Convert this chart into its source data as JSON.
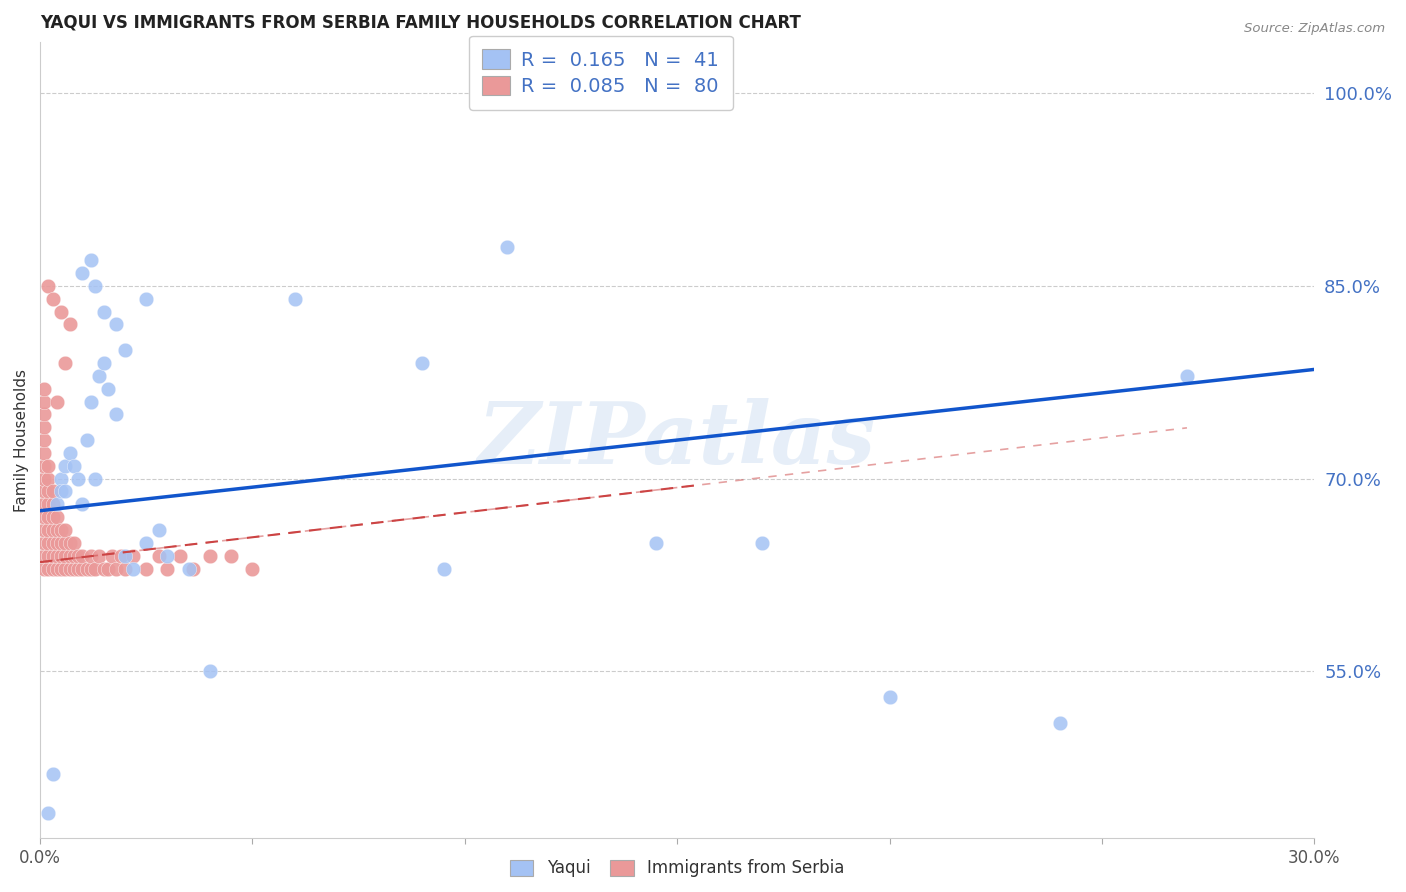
{
  "title": "YAQUI VS IMMIGRANTS FROM SERBIA FAMILY HOUSEHOLDS CORRELATION CHART",
  "source": "Source: ZipAtlas.com",
  "ylabel": "Family Households",
  "ytick_labels": [
    "100.0%",
    "85.0%",
    "70.0%",
    "55.0%"
  ],
  "ytick_values": [
    1.0,
    0.85,
    0.7,
    0.55
  ],
  "xlim": [
    0.0,
    0.3
  ],
  "ylim": [
    0.42,
    1.04
  ],
  "legend_blue_R": "0.165",
  "legend_blue_N": "41",
  "legend_pink_R": "0.085",
  "legend_pink_N": "80",
  "watermark": "ZIPatlas",
  "blue_color": "#a4c2f4",
  "pink_color": "#ea9999",
  "blue_line_color": "#1155cc",
  "pink_line_color": "#cc4444",
  "grid_color": "#cccccc",
  "background_color": "#ffffff",
  "yaqui_x": [
    0.002,
    0.003,
    0.004,
    0.005,
    0.005,
    0.006,
    0.006,
    0.007,
    0.008,
    0.009,
    0.01,
    0.011,
    0.012,
    0.013,
    0.014,
    0.015,
    0.016,
    0.018,
    0.02,
    0.022,
    0.025,
    0.028,
    0.01,
    0.012,
    0.013,
    0.015,
    0.018,
    0.02,
    0.025,
    0.03,
    0.035,
    0.04,
    0.06,
    0.09,
    0.095,
    0.11,
    0.145,
    0.17,
    0.2,
    0.24,
    0.27
  ],
  "yaqui_y": [
    0.44,
    0.47,
    0.68,
    0.7,
    0.69,
    0.71,
    0.69,
    0.72,
    0.71,
    0.7,
    0.68,
    0.73,
    0.76,
    0.7,
    0.78,
    0.79,
    0.77,
    0.75,
    0.64,
    0.63,
    0.65,
    0.66,
    0.86,
    0.87,
    0.85,
    0.83,
    0.82,
    0.8,
    0.84,
    0.64,
    0.63,
    0.55,
    0.84,
    0.79,
    0.63,
    0.88,
    0.65,
    0.65,
    0.53,
    0.51,
    0.78
  ],
  "serbia_x": [
    0.001,
    0.001,
    0.001,
    0.001,
    0.001,
    0.001,
    0.001,
    0.001,
    0.001,
    0.001,
    0.001,
    0.001,
    0.001,
    0.001,
    0.001,
    0.002,
    0.002,
    0.002,
    0.002,
    0.002,
    0.002,
    0.002,
    0.002,
    0.002,
    0.003,
    0.003,
    0.003,
    0.003,
    0.003,
    0.003,
    0.003,
    0.004,
    0.004,
    0.004,
    0.004,
    0.004,
    0.005,
    0.005,
    0.005,
    0.005,
    0.006,
    0.006,
    0.006,
    0.006,
    0.007,
    0.007,
    0.007,
    0.008,
    0.008,
    0.008,
    0.009,
    0.009,
    0.01,
    0.01,
    0.011,
    0.012,
    0.012,
    0.013,
    0.014,
    0.015,
    0.016,
    0.017,
    0.018,
    0.019,
    0.02,
    0.022,
    0.025,
    0.028,
    0.03,
    0.033,
    0.036,
    0.04,
    0.045,
    0.05,
    0.002,
    0.003,
    0.004,
    0.005,
    0.006,
    0.007
  ],
  "serbia_y": [
    0.63,
    0.64,
    0.65,
    0.66,
    0.67,
    0.68,
    0.69,
    0.7,
    0.71,
    0.72,
    0.73,
    0.74,
    0.75,
    0.76,
    0.77,
    0.63,
    0.64,
    0.65,
    0.66,
    0.67,
    0.68,
    0.69,
    0.7,
    0.71,
    0.63,
    0.64,
    0.65,
    0.66,
    0.67,
    0.68,
    0.69,
    0.63,
    0.64,
    0.65,
    0.66,
    0.67,
    0.63,
    0.64,
    0.65,
    0.66,
    0.63,
    0.64,
    0.65,
    0.66,
    0.63,
    0.64,
    0.65,
    0.63,
    0.64,
    0.65,
    0.63,
    0.64,
    0.63,
    0.64,
    0.63,
    0.63,
    0.64,
    0.63,
    0.64,
    0.63,
    0.63,
    0.64,
    0.63,
    0.64,
    0.63,
    0.64,
    0.63,
    0.64,
    0.63,
    0.64,
    0.63,
    0.64,
    0.64,
    0.63,
    0.85,
    0.84,
    0.76,
    0.83,
    0.79,
    0.82
  ],
  "blue_line_x": [
    0.0,
    0.3
  ],
  "blue_line_y": [
    0.675,
    0.785
  ],
  "pink_line_x": [
    0.0,
    0.155
  ],
  "pink_line_y": [
    0.635,
    0.695
  ]
}
